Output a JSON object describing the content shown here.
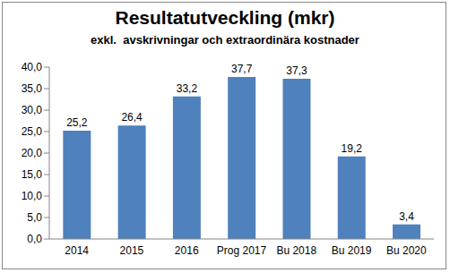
{
  "chart_data": {
    "type": "bar",
    "title": "Resultatutveckling (mkr)",
    "subtitle": "exkl.  avskrivningar och extraordinära kostnader",
    "categories": [
      "2014",
      "2015",
      "2016",
      "Prog 2017",
      "Bu 2018",
      "Bu 2019",
      "Bu 2020"
    ],
    "values": [
      25.2,
      26.4,
      33.2,
      37.7,
      37.3,
      19.2,
      3.4
    ],
    "value_labels": [
      "25,2",
      "26,4",
      "33,2",
      "37,7",
      "37,3",
      "19,2",
      "3,4"
    ],
    "color": "#4f81bd",
    "ylim": [
      0,
      40
    ],
    "yticks": [
      {
        "value": 0,
        "label": "0,0"
      },
      {
        "value": 5,
        "label": "5,0"
      },
      {
        "value": 10,
        "label": "10,0"
      },
      {
        "value": 15,
        "label": "15,0"
      },
      {
        "value": 20,
        "label": "20,0"
      },
      {
        "value": 25,
        "label": "25,0"
      },
      {
        "value": 30,
        "label": "30,0"
      },
      {
        "value": 35,
        "label": "35,0"
      },
      {
        "value": 40,
        "label": "40,0"
      }
    ],
    "grid": false,
    "data_labels": true
  }
}
